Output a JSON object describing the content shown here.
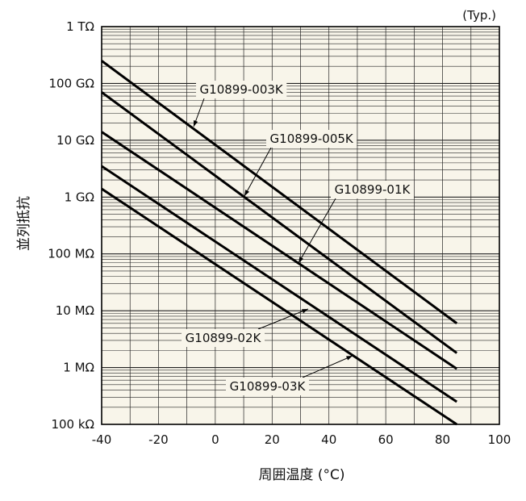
{
  "chart_data": {
    "type": "line",
    "note": "(Typ.)",
    "xlabel": "周囲温度 (°C)",
    "ylabel": "並列抵抗",
    "xlim": [
      -40,
      100
    ],
    "x_ticks": [
      -40,
      -20,
      0,
      20,
      40,
      60,
      80,
      100
    ],
    "x_tick_labels": [
      "-40",
      "-20",
      "0",
      "20",
      "40",
      "60",
      "80",
      "100"
    ],
    "y_scale": "log",
    "ylim_ohm": [
      100000.0,
      1000000000000.0
    ],
    "y_ticks_ohm": [
      100000.0,
      1000000.0,
      10000000.0,
      100000000.0,
      1000000000.0,
      10000000000.0,
      100000000000.0,
      1000000000000.0
    ],
    "y_tick_labels": [
      "100 kΩ",
      "1 MΩ",
      "10 MΩ",
      "100 MΩ",
      "1 GΩ",
      "10 GΩ",
      "100 GΩ",
      "1 TΩ"
    ],
    "grid": true,
    "background_color": "#f8f5ea",
    "line_color": "#000000",
    "series": [
      {
        "name": "G10899-003K",
        "x": [
          -40,
          85
        ],
        "y_ohm": [
          250000000000.0,
          6000000.0
        ]
      },
      {
        "name": "G10899-005K",
        "x": [
          -40,
          85
        ],
        "y_ohm": [
          70000000000.0,
          1800000.0
        ]
      },
      {
        "name": "G10899-01K",
        "x": [
          -40,
          85
        ],
        "y_ohm": [
          14000000000.0,
          950000.0
        ]
      },
      {
        "name": "G10899-02K",
        "x": [
          -40,
          85
        ],
        "y_ohm": [
          3500000000.0,
          250000.0
        ]
      },
      {
        "name": "G10899-03K",
        "x": [
          -40,
          85
        ],
        "y_ohm": [
          1400000000.0,
          100000.0
        ]
      }
    ]
  }
}
